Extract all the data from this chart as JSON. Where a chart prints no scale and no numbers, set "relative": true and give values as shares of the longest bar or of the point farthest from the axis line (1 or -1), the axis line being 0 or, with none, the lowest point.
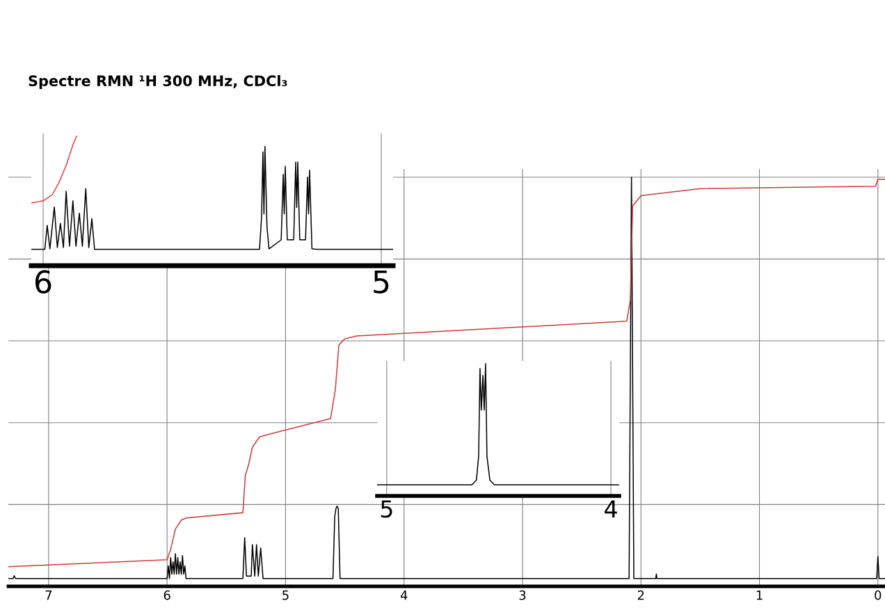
{
  "chart_data": [
    {
      "type": "line",
      "title": "Spectre RMN ¹H 300 MHz, CDCl₃",
      "relative": true,
      "xlim": [
        7.34,
        -0.06
      ],
      "xticks": [
        7,
        6,
        5,
        4,
        3,
        2,
        1,
        0
      ],
      "grid": true,
      "tick_labels": "x",
      "series": [
        {
          "color": "#000000",
          "x": [
            7.34,
            7.3,
            7.29,
            7.28,
            6.0,
            5.99,
            5.98,
            5.97,
            5.96,
            5.95,
            5.94,
            5.93,
            5.92,
            5.91,
            5.9,
            5.89,
            5.88,
            5.87,
            5.86,
            5.85,
            5.84,
            5.36,
            5.345,
            5.33,
            5.29,
            5.28,
            5.26,
            5.245,
            5.23,
            5.21,
            5.19,
            4.6,
            4.585,
            4.575,
            4.565,
            4.555,
            4.54,
            2.1,
            2.08,
            2.06,
            1.875,
            1.87,
            1.865,
            0.01,
            0.0,
            -0.01,
            -0.06
          ],
          "values": [
            0.019,
            0.019,
            0.026,
            0.019,
            0.019,
            0.05,
            0.019,
            0.07,
            0.03,
            0.06,
            0.03,
            0.08,
            0.03,
            0.07,
            0.03,
            0.06,
            0.03,
            0.075,
            0.03,
            0.05,
            0.019,
            0.019,
            0.119,
            0.025,
            0.025,
            0.102,
            0.025,
            0.102,
            0.025,
            0.094,
            0.019,
            0.019,
            0.17,
            0.19,
            0.196,
            0.19,
            0.019,
            0.019,
            1.0,
            0.019,
            0.019,
            0.03,
            0.019,
            0.019,
            0.073,
            0.019,
            0.019
          ]
        },
        {
          "color": "#c83c3c",
          "x": [
            7.34,
            6.0,
            5.97,
            5.93,
            5.88,
            5.84,
            5.36,
            5.34,
            5.31,
            5.28,
            5.22,
            5.15,
            4.62,
            4.58,
            4.55,
            4.5,
            4.4,
            2.12,
            2.09,
            2.07,
            2.0,
            1.5,
            0.02,
            0.0,
            -0.06
          ],
          "values": [
            0.048,
            0.065,
            0.09,
            0.14,
            0.162,
            0.167,
            0.18,
            0.27,
            0.3,
            0.34,
            0.365,
            0.371,
            0.41,
            0.48,
            0.59,
            0.605,
            0.612,
            0.648,
            0.7,
            0.93,
            0.955,
            0.972,
            0.978,
            0.995,
            0.995
          ]
        }
      ]
    },
    {
      "type": "line",
      "relative": true,
      "xlim": [
        6.035,
        4.965
      ],
      "xticks": [
        6,
        5
      ],
      "grid": "x",
      "tick_labels": "x",
      "series": [
        {
          "color": "#000000",
          "x": [
            6.035,
            5.995,
            5.988,
            5.98,
            5.967,
            5.958,
            5.949,
            5.94,
            5.932,
            5.922,
            5.912,
            5.903,
            5.893,
            5.884,
            5.874,
            5.865,
            5.856,
            5.848,
            5.36,
            5.354,
            5.35,
            5.347,
            5.344,
            5.338,
            5.332,
            5.296,
            5.29,
            5.287,
            5.284,
            5.278,
            5.259,
            5.253,
            5.25,
            5.247,
            5.241,
            5.224,
            5.218,
            5.215,
            5.212,
            5.205,
            5.19,
            4.965
          ],
          "values": [
            0.126,
            0.126,
            0.311,
            0.13,
            0.453,
            0.14,
            0.326,
            0.14,
            0.574,
            0.15,
            0.5,
            0.15,
            0.405,
            0.15,
            0.595,
            0.14,
            0.363,
            0.126,
            0.126,
            0.38,
            0.879,
            0.4,
            0.921,
            0.3,
            0.13,
            0.2,
            0.705,
            0.4,
            0.768,
            0.2,
            0.2,
            0.8,
            0.45,
            0.8,
            0.2,
            0.2,
            0.684,
            0.4,
            0.737,
            0.13,
            0.126,
            0.126
          ]
        },
        {
          "color": "#e84040",
          "x": [
            6.035,
            6.0,
            5.973,
            5.953,
            5.932,
            5.912,
            5.901
          ],
          "values": [
            0.484,
            0.5,
            0.548,
            0.642,
            0.774,
            0.932,
            1.0
          ]
        }
      ]
    },
    {
      "type": "line",
      "relative": true,
      "xlim": [
        5.043,
        3.963
      ],
      "xticks": [
        5,
        4
      ],
      "grid": "x",
      "tick_labels": "x",
      "series": [
        {
          "color": "#000000",
          "x": [
            5.043,
            4.62,
            4.6,
            4.59,
            4.584,
            4.578,
            4.571,
            4.565,
            4.559,
            4.553,
            4.54,
            4.52,
            3.963
          ],
          "values": [
            0.084,
            0.084,
            0.12,
            0.3,
            0.963,
            0.65,
            0.911,
            0.65,
            1.0,
            0.3,
            0.12,
            0.084,
            0.084
          ]
        }
      ]
    }
  ]
}
